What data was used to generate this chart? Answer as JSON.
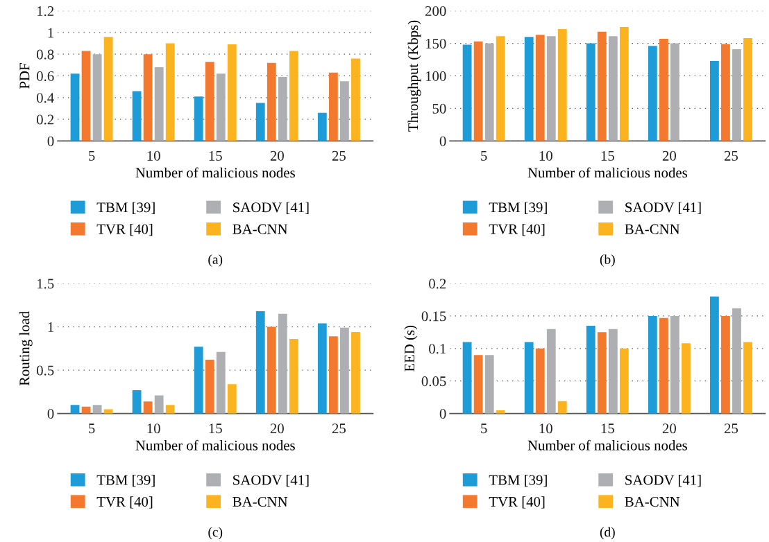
{
  "chart_data": [
    {
      "type": "bar",
      "xlabel": "Number of malicious nodes",
      "ylabel": "PDF",
      "categories": [
        "5",
        "10",
        "15",
        "20",
        "25"
      ],
      "ylim": [
        0,
        1.2
      ],
      "yticks": [
        0,
        0.2,
        0.4,
        0.6,
        0.8,
        1,
        1.2
      ],
      "grid": "y",
      "legend": "bottom",
      "annotations": [
        "(a)"
      ],
      "series": [
        {
          "name": "TBM [39]",
          "color": "#1e9cd7",
          "values": [
            0.62,
            0.46,
            0.41,
            0.35,
            0.26
          ]
        },
        {
          "name": "TVR [40]",
          "color": "#f2792e",
          "values": [
            0.83,
            0.8,
            0.73,
            0.72,
            0.63
          ]
        },
        {
          "name": "SAODV [41]",
          "color": "#aeafb2",
          "values": [
            0.8,
            0.68,
            0.62,
            0.59,
            0.55
          ]
        },
        {
          "name": "BA-CNN",
          "color": "#fbb41f",
          "values": [
            0.96,
            0.9,
            0.89,
            0.83,
            0.76
          ]
        }
      ]
    },
    {
      "type": "bar",
      "xlabel": "Number of malicious nodes",
      "ylabel": "Throughput (Kbps)",
      "categories": [
        "5",
        "10",
        "15",
        "20",
        "25"
      ],
      "ylim": [
        0,
        200
      ],
      "yticks": [
        0,
        50,
        100,
        150,
        200
      ],
      "grid": "y",
      "legend": "bottom",
      "annotations": [
        "(b)"
      ],
      "series": [
        {
          "name": "TBM [39]",
          "color": "#1e9cd7",
          "values": [
            148,
            160,
            150,
            146,
            123
          ]
        },
        {
          "name": "TVR [40]",
          "color": "#f2792e",
          "values": [
            153,
            163,
            168,
            157,
            149
          ]
        },
        {
          "name": "SAODV [41]",
          "color": "#aeafb2",
          "values": [
            150,
            161,
            161,
            150,
            141
          ]
        },
        {
          "name": "BA-CNN",
          "color": "#fbb41f",
          "values": [
            161,
            172,
            175,
            null,
            158
          ]
        }
      ]
    },
    {
      "type": "bar",
      "xlabel": "Number of malicious nodes",
      "ylabel": "Routing load",
      "categories": [
        "5",
        "10",
        "15",
        "20",
        "25"
      ],
      "ylim": [
        0,
        1.5
      ],
      "yticks": [
        0,
        0.5,
        1,
        1.5
      ],
      "grid": "y",
      "legend": "bottom",
      "annotations": [
        "(c)"
      ],
      "series": [
        {
          "name": "TBM [39]",
          "color": "#1e9cd7",
          "values": [
            0.1,
            0.27,
            0.77,
            1.18,
            1.04
          ]
        },
        {
          "name": "TVR [40]",
          "color": "#f2792e",
          "values": [
            0.08,
            0.14,
            0.62,
            1.0,
            0.89
          ]
        },
        {
          "name": "SAODV [41]",
          "color": "#aeafb2",
          "values": [
            0.1,
            0.21,
            0.71,
            1.15,
            0.99
          ]
        },
        {
          "name": "BA-CNN",
          "color": "#fbb41f",
          "values": [
            0.05,
            0.1,
            0.34,
            0.86,
            0.94
          ]
        }
      ]
    },
    {
      "type": "bar",
      "xlabel": "Number of malicious nodes",
      "ylabel": "EED (s)",
      "categories": [
        "5",
        "10",
        "15",
        "20",
        "25"
      ],
      "ylim": [
        0,
        0.2
      ],
      "yticks": [
        0,
        0.05,
        0.1,
        0.15,
        0.2
      ],
      "grid": "y",
      "legend": "bottom",
      "annotations": [
        "(d)"
      ],
      "series": [
        {
          "name": "TBM [39]",
          "color": "#1e9cd7",
          "values": [
            0.11,
            0.11,
            0.135,
            0.15,
            0.18
          ]
        },
        {
          "name": "TVR [40]",
          "color": "#f2792e",
          "values": [
            0.09,
            0.1,
            0.125,
            0.147,
            0.15
          ]
        },
        {
          "name": "SAODV [41]",
          "color": "#aeafb2",
          "values": [
            0.09,
            0.13,
            0.13,
            0.15,
            0.162
          ]
        },
        {
          "name": "BA-CNN",
          "color": "#fbb41f",
          "values": [
            0.005,
            0.019,
            0.1,
            0.108,
            0.11
          ]
        }
      ]
    }
  ]
}
